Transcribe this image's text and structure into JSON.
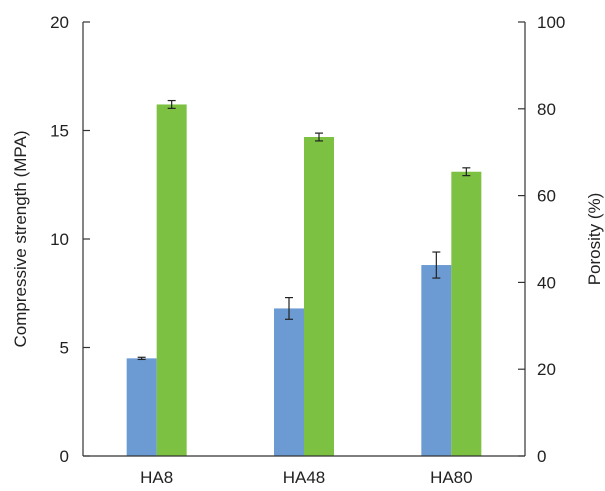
{
  "chart_data": {
    "type": "bar",
    "categories": [
      "HA8",
      "HA48",
      "HA80"
    ],
    "ylabel": "Compressive strength (MPA)",
    "y2label": "Porosity (%)",
    "ylim": [
      0,
      20
    ],
    "y2lim": [
      0,
      100
    ],
    "yticks": [
      "0",
      "5",
      "10",
      "15",
      "20"
    ],
    "y2ticks": [
      "0",
      "20",
      "40",
      "60",
      "80",
      "100"
    ],
    "series": [
      {
        "axis": "left",
        "color": "#6b9bd2",
        "values": [
          4.5,
          6.8,
          8.8
        ],
        "errors": [
          0.05,
          0.5,
          0.6
        ]
      },
      {
        "axis": "right",
        "color": "#7cc142",
        "values": [
          81,
          73.5,
          65.5
        ],
        "errors": [
          0.9,
          0.9,
          0.9
        ]
      }
    ],
    "grid": false,
    "legend": "none"
  }
}
